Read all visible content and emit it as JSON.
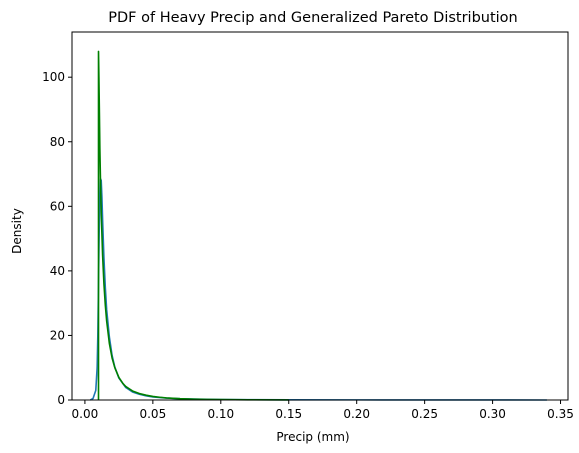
{
  "chart_data": {
    "type": "line",
    "title": "PDF of Heavy Precip and Generalized Pareto Distribution",
    "xlabel": "Precip (mm)",
    "ylabel": "Density",
    "xlim": [
      -0.0095,
      0.3555
    ],
    "ylim": [
      0,
      114
    ],
    "grid": false,
    "x_ticks": [
      0.0,
      0.05,
      0.1,
      0.15,
      0.2,
      0.25,
      0.3,
      0.35
    ],
    "x_tick_labels": [
      "0.00",
      "0.05",
      "0.10",
      "0.15",
      "0.20",
      "0.25",
      "0.30",
      "0.35"
    ],
    "y_ticks": [
      0,
      20,
      40,
      60,
      80,
      100
    ],
    "y_tick_labels": [
      "0",
      "20",
      "40",
      "60",
      "80",
      "100"
    ],
    "series": [
      {
        "color": "#1f77b4",
        "x": [
          0.004,
          0.006,
          0.008,
          0.009,
          0.0095,
          0.01,
          0.0105,
          0.011,
          0.0115,
          0.012,
          0.0125,
          0.013,
          0.014,
          0.015,
          0.016,
          0.018,
          0.02,
          0.022,
          0.025,
          0.03,
          0.035,
          0.04,
          0.045,
          0.05,
          0.06,
          0.07,
          0.08,
          0.09,
          0.1,
          0.12,
          0.15,
          0.2,
          0.25,
          0.3,
          0.34
        ],
        "y": [
          0,
          0.5,
          3,
          10,
          20,
          36,
          52,
          64,
          68.5,
          68,
          63,
          56,
          44,
          35,
          28,
          19.5,
          13.8,
          10.2,
          6.8,
          3.9,
          2.5,
          1.8,
          1.3,
          0.95,
          0.6,
          0.4,
          0.3,
          0.2,
          0.15,
          0.1,
          0.07,
          0.04,
          0.02,
          0.01,
          0
        ]
      },
      {
        "color": "#008000",
        "x": [
          0.01,
          0.01,
          0.0103,
          0.0107,
          0.011,
          0.0115,
          0.012,
          0.013,
          0.014,
          0.015,
          0.016,
          0.018,
          0.02,
          0.022,
          0.025,
          0.028,
          0.03,
          0.035,
          0.04,
          0.045,
          0.05,
          0.055,
          0.06,
          0.07,
          0.08,
          0.09,
          0.1,
          0.12,
          0.15
        ],
        "y": [
          0,
          108,
          100,
          88,
          78,
          67,
          58,
          45,
          36,
          29.5,
          24.5,
          17.5,
          13,
          10,
          7,
          5.1,
          4.2,
          2.8,
          2.0,
          1.5,
          1.1,
          0.85,
          0.65,
          0.4,
          0.27,
          0.18,
          0.12,
          0.06,
          0.02
        ]
      }
    ]
  }
}
